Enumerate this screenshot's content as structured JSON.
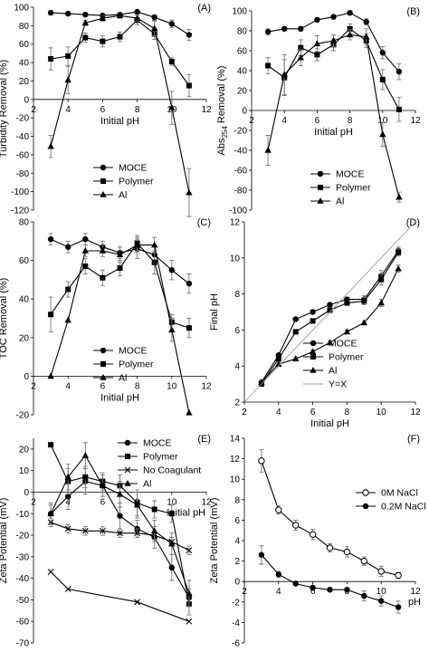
{
  "chart_data": [
    {
      "type": "line",
      "panel_label": "(A)",
      "xlabel": "Initial pH",
      "ylabel": "Turbidity Removal (%)",
      "xlim": [
        2,
        12
      ],
      "ylim": [
        -120,
        100
      ],
      "xticks": [
        2,
        4,
        6,
        8,
        10,
        12
      ],
      "yticks": [
        -120,
        -100,
        -80,
        -60,
        -40,
        -20,
        0,
        20,
        40,
        60,
        80,
        100
      ],
      "legend_position": "lower-center",
      "series": [
        {
          "name": "MOCE",
          "marker": "circle",
          "x": [
            3,
            4,
            5,
            6,
            7,
            8,
            9,
            10,
            11
          ],
          "y": [
            94,
            93,
            92,
            91,
            92,
            95,
            89,
            82,
            70
          ],
          "err": [
            2,
            2,
            2,
            2,
            2,
            2,
            3,
            4,
            6
          ]
        },
        {
          "name": "Polymer",
          "marker": "square",
          "x": [
            3,
            4,
            5,
            6,
            7,
            8,
            9,
            10,
            11
          ],
          "y": [
            44,
            47,
            67,
            63,
            68,
            86,
            71,
            41,
            15
          ],
          "err": [
            12,
            10,
            5,
            6,
            5,
            5,
            6,
            4,
            12
          ]
        },
        {
          "name": "Al",
          "marker": "triangle",
          "x": [
            3,
            4,
            5,
            6,
            7,
            8,
            9,
            10,
            11
          ],
          "y": [
            -51,
            21,
            83,
            88,
            91,
            88,
            77,
            -9,
            -101
          ],
          "err": [
            12,
            15,
            3,
            3,
            3,
            3,
            8,
            18,
            26
          ]
        }
      ]
    },
    {
      "type": "line",
      "panel_label": "(B)",
      "xlabel": "Initial pH",
      "ylabel": "Abs254 Removal (%)",
      "ylabel_main": "Abs",
      "ylabel_sub": "254",
      "ylabel_rest": " Removal (%)",
      "xlim": [
        2,
        12
      ],
      "ylim": [
        -100,
        100
      ],
      "xticks": [
        2,
        4,
        6,
        8,
        10,
        12
      ],
      "yticks": [
        -100,
        -80,
        -60,
        -40,
        -20,
        0,
        20,
        40,
        60,
        80,
        100
      ],
      "legend_position": "lower-center",
      "series": [
        {
          "name": "MOCE",
          "marker": "circle",
          "x": [
            3,
            4,
            5,
            6,
            7,
            8,
            9,
            10,
            11
          ],
          "y": [
            79,
            82,
            82,
            91,
            94,
            98,
            89,
            58,
            39
          ],
          "err": [
            3,
            2,
            2,
            2,
            2,
            2,
            3,
            6,
            8
          ]
        },
        {
          "name": "Polymer",
          "marker": "square",
          "x": [
            3,
            4,
            5,
            6,
            7,
            8,
            9,
            10,
            11
          ],
          "y": [
            45,
            33,
            63,
            56,
            66,
            82,
            70,
            31,
            1
          ],
          "err": [
            8,
            18,
            8,
            6,
            6,
            5,
            7,
            10,
            12
          ]
        },
        {
          "name": "Al",
          "marker": "triangle",
          "x": [
            3,
            4,
            5,
            6,
            7,
            8,
            9,
            10,
            11
          ],
          "y": [
            -40,
            36,
            53,
            67,
            70,
            76,
            74,
            -24,
            -87
          ],
          "err": [
            15,
            20,
            8,
            8,
            6,
            5,
            8,
            12,
            5
          ]
        }
      ]
    },
    {
      "type": "line",
      "panel_label": "(C)",
      "xlabel": "Initial pH",
      "ylabel": "TOC Removal (%)",
      "xlim": [
        2,
        12
      ],
      "ylim": [
        -20,
        80
      ],
      "xticks": [
        2,
        4,
        6,
        8,
        10,
        12
      ],
      "yticks": [
        -20,
        0,
        20,
        40,
        60,
        80
      ],
      "legend_position": "lower-center",
      "series": [
        {
          "name": "MOCE",
          "marker": "circle",
          "x": [
            3,
            4,
            5,
            6,
            7,
            8,
            9,
            10,
            11
          ],
          "y": [
            71,
            67,
            71,
            67,
            64,
            66,
            63,
            55,
            48
          ],
          "err": [
            3,
            3,
            3,
            3,
            3,
            5,
            5,
            5,
            5
          ]
        },
        {
          "name": "Polymer",
          "marker": "square",
          "x": [
            3,
            4,
            5,
            6,
            7,
            8,
            9,
            10,
            11
          ],
          "y": [
            32,
            45,
            57,
            51,
            56,
            69,
            59,
            28,
            25
          ],
          "err": [
            9,
            4,
            4,
            4,
            4,
            4,
            6,
            4,
            5
          ]
        },
        {
          "name": "Al",
          "marker": "triangle",
          "x": [
            3,
            4,
            5,
            6,
            7,
            8,
            9,
            10,
            11
          ],
          "y": [
            0,
            29,
            65,
            65,
            63,
            68,
            68,
            24,
            -19
          ],
          "err": [
            0,
            0,
            3,
            3,
            4,
            4,
            4,
            6,
            0
          ]
        }
      ]
    },
    {
      "type": "line",
      "panel_label": "(D)",
      "xlabel": "Initial pH",
      "ylabel": "Final pH",
      "xlim": [
        2,
        12
      ],
      "ylim": [
        2,
        12
      ],
      "xticks": [
        2,
        4,
        6,
        8,
        10,
        12
      ],
      "yticks": [
        2,
        4,
        6,
        8,
        10,
        12
      ],
      "legend_position": "lower-right",
      "series": [
        {
          "name": "MOCE",
          "marker": "circle",
          "x": [
            3,
            4,
            5,
            6,
            7,
            8,
            9,
            10,
            11
          ],
          "y": [
            3.1,
            4.6,
            6.6,
            7.0,
            7.4,
            7.7,
            7.7,
            9.0,
            10.4
          ],
          "err": [
            0.1,
            0.1,
            0.1,
            0.1,
            0.1,
            0.1,
            0.2,
            0.3,
            0.2
          ]
        },
        {
          "name": "Polymer",
          "marker": "square",
          "x": [
            3,
            4,
            5,
            6,
            7,
            8,
            9,
            10,
            11
          ],
          "y": [
            3.0,
            4.4,
            5.9,
            6.5,
            7.1,
            7.5,
            7.6,
            8.8,
            10.3
          ],
          "err": [
            0.1,
            0.1,
            0.1,
            0.1,
            0.1,
            0.1,
            0.2,
            0.3,
            0.2
          ]
        },
        {
          "name": "Al",
          "marker": "triangle",
          "x": [
            3,
            4,
            5,
            6,
            7,
            8,
            9,
            10,
            11
          ],
          "y": [
            3.1,
            4.1,
            4.4,
            4.8,
            5.3,
            5.9,
            6.4,
            7.5,
            9.4
          ],
          "err": [
            0.1,
            0.1,
            0.1,
            0.1,
            0.1,
            0.1,
            0.1,
            0.2,
            0.2
          ]
        },
        {
          "name": "Y=X",
          "marker": "none",
          "line_style": "thin-gray",
          "x": [
            2,
            12
          ],
          "y": [
            2,
            12
          ]
        }
      ]
    },
    {
      "type": "line",
      "panel_label": "(E)",
      "xlabel": "Initial pH",
      "ylabel": "Zeta Potential (mV)",
      "xlim": [
        2,
        12
      ],
      "ylim": [
        -70,
        25
      ],
      "x_axis_crosses_at": 0,
      "xticks": [
        2,
        4,
        6,
        8,
        10,
        12
      ],
      "yticks": [
        -70,
        -60,
        -50,
        -40,
        -30,
        -20,
        -10,
        0,
        10,
        20
      ],
      "legend_position": "top-right",
      "series": [
        {
          "name": "MOCE",
          "marker": "circle",
          "x": [
            3,
            4,
            5,
            6,
            7,
            8,
            9,
            10,
            11
          ],
          "y": [
            -10,
            -2,
            5,
            3,
            -11,
            -17,
            -21,
            -35,
            -49
          ],
          "err": [
            4,
            6,
            6,
            5,
            6,
            4,
            5,
            6,
            4
          ]
        },
        {
          "name": "Polymer",
          "marker": "square",
          "x": [
            3,
            4,
            5,
            6,
            7,
            8,
            9,
            10,
            11
          ],
          "y": [
            22,
            5,
            7,
            5,
            3,
            -5,
            -8,
            -10,
            -52
          ],
          "err": [
            0,
            6,
            5,
            4,
            5,
            6,
            4,
            4,
            5
          ]
        },
        {
          "name": "No Coagulant",
          "marker": "x",
          "x": [
            3,
            4,
            5,
            6,
            7,
            8,
            9,
            10,
            11
          ],
          "y": [
            -14,
            -17,
            -18,
            -18,
            -19,
            -19,
            -20,
            -23,
            -27
          ],
          "err": [
            2,
            2,
            2,
            2,
            2,
            2,
            2,
            2,
            2
          ]
        },
        {
          "name": "",
          "marker": "x",
          "x": [
            3,
            4,
            8,
            11
          ],
          "y": [
            -37,
            -45,
            -51,
            -60
          ],
          "err": [
            0,
            0,
            0,
            0
          ]
        },
        {
          "name": "Al",
          "marker": "triangle",
          "x": [
            3,
            4,
            5,
            6,
            7,
            8,
            9,
            10,
            11
          ],
          "y": [
            -10,
            7,
            17,
            3,
            -1,
            -6,
            -18,
            -24,
            -47
          ],
          "err": [
            5,
            6,
            6,
            5,
            6,
            6,
            5,
            5,
            6
          ]
        }
      ]
    },
    {
      "type": "line",
      "panel_label": "(F)",
      "xlabel": "pH",
      "ylabel": "Zeta Potential (mV)",
      "xlim": [
        2,
        12
      ],
      "ylim": [
        -6,
        14
      ],
      "x_axis_crosses_at": 0,
      "xticks": [
        2,
        4,
        6,
        8,
        10,
        12
      ],
      "yticks": [
        -6,
        -4,
        -2,
        0,
        2,
        4,
        6,
        8,
        10,
        12,
        14
      ],
      "legend_position": "right",
      "series": [
        {
          "name": "0M NaCl",
          "marker": "open-circle",
          "x": [
            3,
            4,
            5,
            6,
            7,
            8,
            9,
            10,
            11
          ],
          "y": [
            11.8,
            7.0,
            5.5,
            4.6,
            3.3,
            2.9,
            2.0,
            1.0,
            0.6
          ],
          "err": [
            1.1,
            0.4,
            0.5,
            0.5,
            0.4,
            0.5,
            0.4,
            0.5,
            0.3
          ]
        },
        {
          "name": "0.2M NaCl",
          "marker": "filled-circle",
          "x": [
            3,
            4,
            5,
            6,
            7,
            8,
            9,
            10,
            11
          ],
          "y": [
            2.6,
            0.7,
            -0.2,
            -0.6,
            -0.8,
            -0.8,
            -1.4,
            -1.9,
            -2.5
          ],
          "err": [
            0.9,
            0.3,
            0.2,
            0.2,
            0.2,
            0.2,
            0.5,
            0.5,
            0.6
          ]
        }
      ]
    }
  ]
}
